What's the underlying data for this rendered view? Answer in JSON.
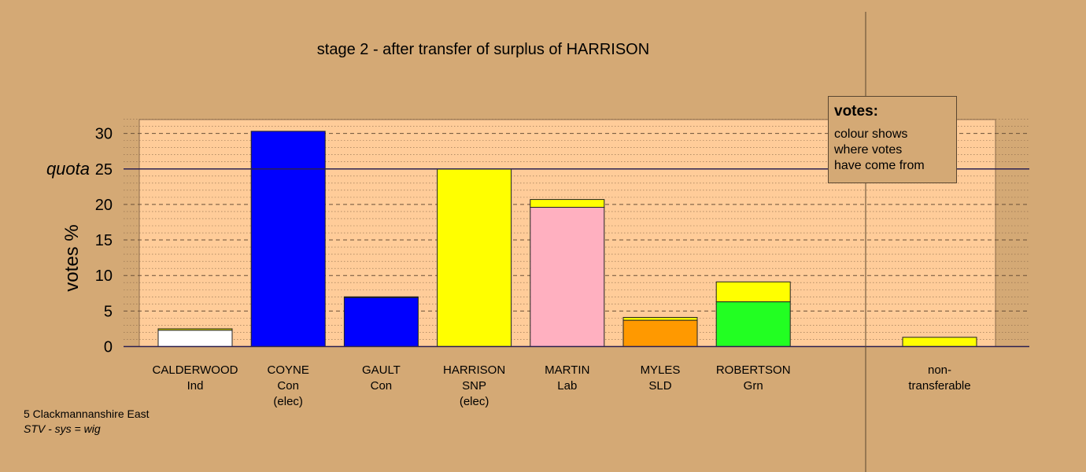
{
  "title": "stage 2 - after transfer of surplus of HARRISON",
  "legend": {
    "heading": "votes:",
    "lines": [
      "colour shows",
      "where votes",
      "have come from"
    ]
  },
  "footer": {
    "ward": "5 Clackmannanshire East",
    "system": "STV - sys = wig"
  },
  "colors": {
    "background": "#d4a975",
    "plot_area": "#ffcc99",
    "Ind": "#ffffff",
    "Con": "#0000ff",
    "SNP": "#ffff00",
    "Lab": "#ffb0c0",
    "SLD": "#ff9900",
    "Grn": "#22ff22"
  },
  "chart_data": {
    "type": "bar",
    "stacked": true,
    "ylabel": "votes %",
    "ylim": [
      0,
      32
    ],
    "yticks": [
      0,
      5,
      10,
      15,
      20,
      25,
      30
    ],
    "quota": 25,
    "quota_label": "quota",
    "grid": true,
    "legend_position": "top-right",
    "candidates": [
      {
        "name": "CALDERWOOD",
        "party": "Ind",
        "note": "",
        "segments": [
          {
            "from": "Ind",
            "value": 2.3
          },
          {
            "from": "SNP",
            "value": 0.2
          }
        ]
      },
      {
        "name": "COYNE",
        "party": "Con",
        "note": "(elec)",
        "segments": [
          {
            "from": "Con",
            "value": 30.3
          }
        ]
      },
      {
        "name": "GAULT",
        "party": "Con",
        "note": "",
        "segments": [
          {
            "from": "Con",
            "value": 6.9
          },
          {
            "from": "SNP",
            "value": 0.1
          }
        ]
      },
      {
        "name": "HARRISON",
        "party": "SNP",
        "note": "(elec)",
        "segments": [
          {
            "from": "SNP",
            "value": 25.0
          }
        ]
      },
      {
        "name": "MARTIN",
        "party": "Lab",
        "note": "",
        "segments": [
          {
            "from": "Lab",
            "value": 19.6
          },
          {
            "from": "SNP",
            "value": 1.1
          }
        ]
      },
      {
        "name": "MYLES",
        "party": "SLD",
        "note": "",
        "segments": [
          {
            "from": "SLD",
            "value": 3.7
          },
          {
            "from": "SNP",
            "value": 0.4
          }
        ]
      },
      {
        "name": "ROBERTSON",
        "party": "Grn",
        "note": "",
        "segments": [
          {
            "from": "Grn",
            "value": 6.3
          },
          {
            "from": "SNP",
            "value": 2.8
          }
        ]
      }
    ],
    "nontransferable": {
      "label1": "non-",
      "label2": "transferable",
      "segments": [
        {
          "from": "SNP",
          "value": 1.3
        }
      ]
    }
  }
}
